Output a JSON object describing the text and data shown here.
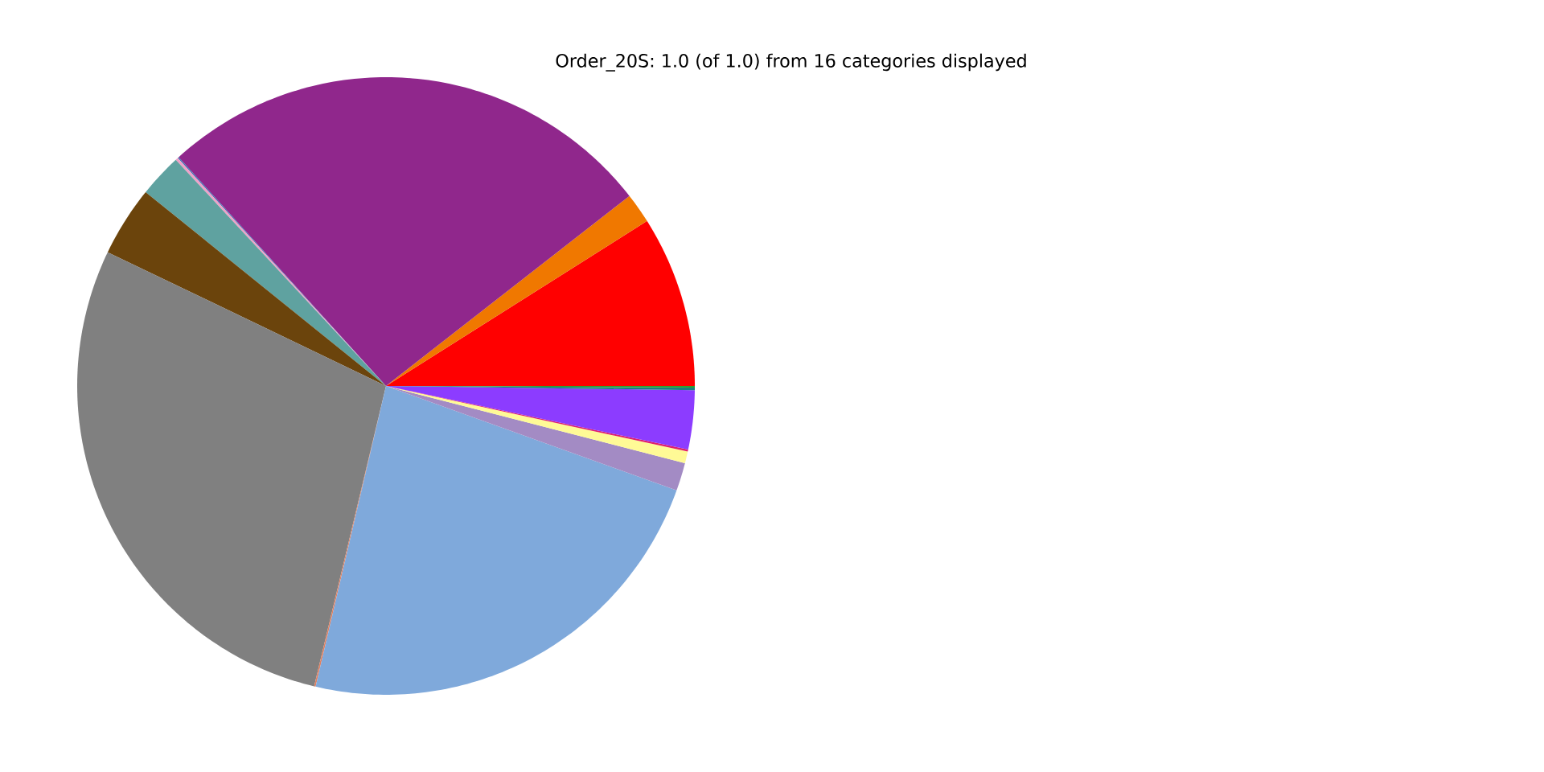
{
  "chart_data": {
    "type": "pie",
    "title": "Order_20S: 1.0 (of 1.0) from 16 categories displayed",
    "categories": [
      null,
      null,
      null,
      null,
      null,
      null,
      null,
      null,
      null,
      null,
      null,
      null,
      null,
      null,
      null,
      null
    ],
    "values": [
      8.97,
      1.58,
      26.17,
      0.06,
      0.14,
      2.28,
      3.67,
      28.39,
      0.08,
      23.17,
      1.47,
      0.61,
      0.11,
      3.08,
      0.14,
      0.08
    ],
    "colors": [
      "#ff0000",
      "#f07800",
      "#90278c",
      "#3a6fb4",
      "#f0a0c8",
      "#5fa2a0",
      "#6b440c",
      "#808080",
      "#e08060",
      "#7fa9db",
      "#a38bc4",
      "#fffa96",
      "#e0206c",
      "#8c3cff",
      "#1a7f80",
      "#2ca02c"
    ]
  }
}
